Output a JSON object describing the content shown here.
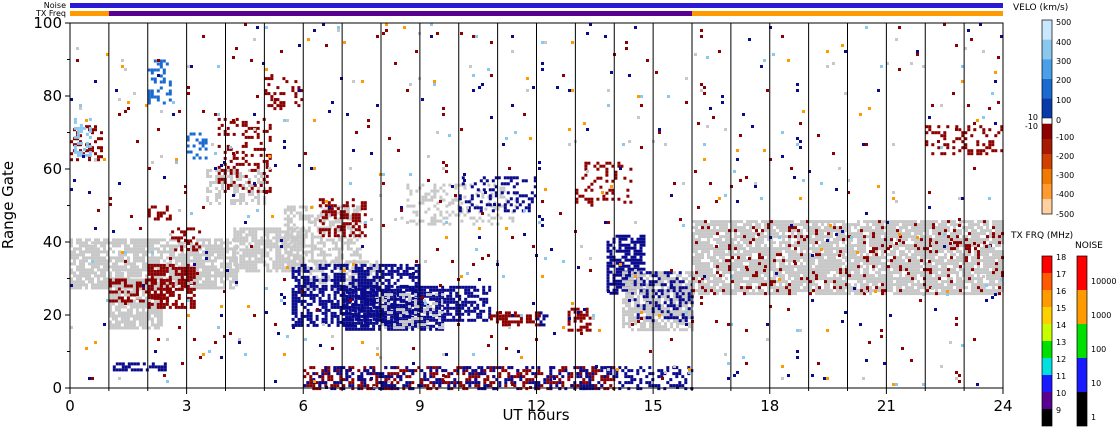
{
  "chart_data": {
    "type": "heatmap",
    "title": "",
    "xlabel": "UT hours",
    "ylabel": "Range Gate",
    "xlim": [
      0,
      24
    ],
    "ylim": [
      0,
      100
    ],
    "x_ticks": [
      "0",
      "3",
      "6",
      "9",
      "12",
      "15",
      "18",
      "21",
      "24"
    ],
    "y_ticks": [
      "0",
      "20",
      "40",
      "60",
      "80",
      "100"
    ],
    "status_bars": {
      "noise_label": "Noise",
      "txfreq_label": "TX Freq",
      "noise_color": "#2a1ad8",
      "txfreq_segments": [
        {
          "start": 0,
          "end": 1,
          "color": "#ff9a00"
        },
        {
          "start": 1,
          "end": 16,
          "color": "#5a0090"
        },
        {
          "start": 16,
          "end": 24,
          "color": "#ff9a00"
        }
      ]
    },
    "scan_boundaries": [
      1,
      2,
      3,
      4,
      5,
      6,
      7,
      8,
      9,
      10,
      11,
      12,
      13,
      14,
      15,
      16,
      17,
      18,
      19,
      20,
      21,
      22,
      23
    ],
    "regions": [
      {
        "x0": 0.0,
        "x1": 4.3,
        "y0": 27,
        "y1": 41,
        "color": "#c8c8c8",
        "density": 0.75
      },
      {
        "x0": 1.0,
        "x1": 2.4,
        "y0": 16,
        "y1": 30,
        "color": "#c8c8c8",
        "density": 0.8
      },
      {
        "x0": 2.0,
        "x1": 3.2,
        "y0": 22,
        "y1": 34,
        "color": "#8c0000",
        "density": 0.65
      },
      {
        "x0": 1.0,
        "x1": 2.6,
        "y0": 24,
        "y1": 30,
        "color": "#8c0000",
        "density": 0.35
      },
      {
        "x0": 4.2,
        "x1": 6.0,
        "y0": 32,
        "y1": 44,
        "color": "#c8c8c8",
        "density": 0.75
      },
      {
        "x0": 3.5,
        "x1": 5.0,
        "y0": 50,
        "y1": 60,
        "color": "#c8c8c8",
        "density": 0.5
      },
      {
        "x0": 3.8,
        "x1": 5.2,
        "y0": 54,
        "y1": 74,
        "color": "#8c0000",
        "density": 0.3
      },
      {
        "x0": 2.6,
        "x1": 3.4,
        "y0": 38,
        "y1": 44,
        "color": "#8c0000",
        "density": 0.4
      },
      {
        "x0": 5.5,
        "x1": 7.5,
        "y0": 34,
        "y1": 50,
        "color": "#c8c8c8",
        "density": 0.5
      },
      {
        "x0": 6.4,
        "x1": 7.6,
        "y0": 42,
        "y1": 52,
        "color": "#8c0000",
        "density": 0.45
      },
      {
        "x0": 6.0,
        "x1": 8.0,
        "y0": 27,
        "y1": 35,
        "color": "#c8c8c8",
        "density": 0.55
      },
      {
        "x0": 5.7,
        "x1": 9.0,
        "y0": 17,
        "y1": 34,
        "color": "#0a0a8c",
        "density": 0.55
      },
      {
        "x0": 7.0,
        "x1": 9.6,
        "y0": 16,
        "y1": 28,
        "color": "#0a0a8c",
        "density": 0.75
      },
      {
        "x0": 8.0,
        "x1": 9.6,
        "y0": 16,
        "y1": 26,
        "color": "#c8c8c8",
        "density": 0.3
      },
      {
        "x0": 9.6,
        "x1": 10.8,
        "y0": 18,
        "y1": 28,
        "color": "#0a0a8c",
        "density": 0.55
      },
      {
        "x0": 10.8,
        "x1": 12.1,
        "y0": 17,
        "y1": 21,
        "color": "#8c0000",
        "density": 0.5
      },
      {
        "x0": 12.0,
        "x1": 12.3,
        "y0": 17,
        "y1": 21,
        "color": "#0a0a8c",
        "density": 0.5
      },
      {
        "x0": 12.8,
        "x1": 13.4,
        "y0": 16,
        "y1": 22,
        "color": "#8c0000",
        "density": 0.55
      },
      {
        "x0": 8.5,
        "x1": 11.5,
        "y0": 45,
        "y1": 56,
        "color": "#c8c8c8",
        "density": 0.25
      },
      {
        "x0": 10.0,
        "x1": 12.0,
        "y0": 48,
        "y1": 58,
        "color": "#0a0a8c",
        "density": 0.25
      },
      {
        "x0": 13.8,
        "x1": 14.8,
        "y0": 26,
        "y1": 42,
        "color": "#0a0a8c",
        "density": 0.65
      },
      {
        "x0": 14.2,
        "x1": 16.0,
        "y0": 16,
        "y1": 32,
        "color": "#c8c8c8",
        "density": 0.7
      },
      {
        "x0": 14.5,
        "x1": 16.0,
        "y0": 18,
        "y1": 32,
        "color": "#0a0a8c",
        "density": 0.35
      },
      {
        "x0": 13.0,
        "x1": 14.5,
        "y0": 50,
        "y1": 62,
        "color": "#8c0000",
        "density": 0.2
      },
      {
        "x0": 16.0,
        "x1": 24.0,
        "y0": 26,
        "y1": 46,
        "color": "#c8c8c8",
        "density": 0.8
      },
      {
        "x0": 16.0,
        "x1": 24.0,
        "y0": 26,
        "y1": 46,
        "color": "#8c0000",
        "density": 0.08
      },
      {
        "x0": 22.0,
        "x1": 24.0,
        "y0": 64,
        "y1": 72,
        "color": "#8c0000",
        "density": 0.3
      },
      {
        "x0": 0.0,
        "x1": 0.8,
        "y0": 62,
        "y1": 72,
        "color": "#8c0000",
        "density": 0.3
      },
      {
        "x0": 0.1,
        "x1": 0.5,
        "y0": 64,
        "y1": 74,
        "color": "#8ac8f0",
        "density": 0.4
      },
      {
        "x0": 2.0,
        "x1": 2.6,
        "y0": 78,
        "y1": 90,
        "color": "#1a6ad0",
        "density": 0.3
      },
      {
        "x0": 5.0,
        "x1": 6.0,
        "y0": 76,
        "y1": 86,
        "color": "#8c0000",
        "density": 0.25
      },
      {
        "x0": 3.0,
        "x1": 3.5,
        "y0": 62,
        "y1": 70,
        "color": "#1a6ad0",
        "density": 0.35
      },
      {
        "x0": 6.0,
        "x1": 14.0,
        "y0": 0,
        "y1": 6,
        "color": "#8c0000",
        "density": 0.35
      },
      {
        "x0": 6.0,
        "x1": 16.0,
        "y0": 0,
        "y1": 6,
        "color": "#0a0a8c",
        "density": 0.3
      },
      {
        "x0": 1.1,
        "x1": 2.5,
        "y0": 5,
        "y1": 7,
        "color": "#0a0a8c",
        "density": 0.6
      },
      {
        "x0": 2.0,
        "x1": 2.6,
        "y0": 46,
        "y1": 50,
        "color": "#8c0000",
        "density": 0.4
      },
      {
        "x0": 0.0,
        "x1": 24.0,
        "y0": 0,
        "y1": 100,
        "color": "#8c0000",
        "density": 0.006
      },
      {
        "x0": 0.0,
        "x1": 24.0,
        "y0": 0,
        "y1": 100,
        "color": "#0a0a8c",
        "density": 0.005
      },
      {
        "x0": 0.0,
        "x1": 24.0,
        "y0": 0,
        "y1": 100,
        "color": "#c8c8c8",
        "density": 0.003
      },
      {
        "x0": 0.0,
        "x1": 24.0,
        "y0": 0,
        "y1": 100,
        "color": "#8ac8f0",
        "density": 0.002
      },
      {
        "x0": 0.0,
        "x1": 24.0,
        "y0": 0,
        "y1": 100,
        "color": "#ff9a00",
        "density": 0.002
      }
    ],
    "colorbars": [
      {
        "title": "VELO (km/s)",
        "labels": [
          "500",
          "400",
          "300",
          "200",
          "100",
          "0",
          "10",
          "-10",
          "-100",
          "-200",
          "-300",
          "-400",
          "-500"
        ],
        "colors": [
          "#c8e8ff",
          "#8ac8f0",
          "#4aa0e8",
          "#1a6ad0",
          "#0a3aa8",
          "#0a0a8c",
          "#ffffff",
          "#8c0000",
          "#a81a00",
          "#d04000",
          "#f07a00",
          "#ff9a30",
          "#ffd0a0"
        ]
      },
      {
        "title": "TX FRQ (MHz)",
        "labels": [
          "18",
          "17",
          "16",
          "15",
          "14",
          "13",
          "12",
          "11",
          "10",
          "9"
        ],
        "colors": [
          "#ff0000",
          "#ff5a00",
          "#ff9a00",
          "#ffd000",
          "#c8ff00",
          "#00e000",
          "#00e0e0",
          "#1a1aff",
          "#5a0090",
          "#000000"
        ]
      },
      {
        "title": "NOISE",
        "labels": [
          "10000",
          "1000",
          "100",
          "10",
          "1"
        ],
        "colors": [
          "#ff0000",
          "#ff9a00",
          "#00e000",
          "#1a1aff",
          "#000000"
        ]
      }
    ]
  }
}
